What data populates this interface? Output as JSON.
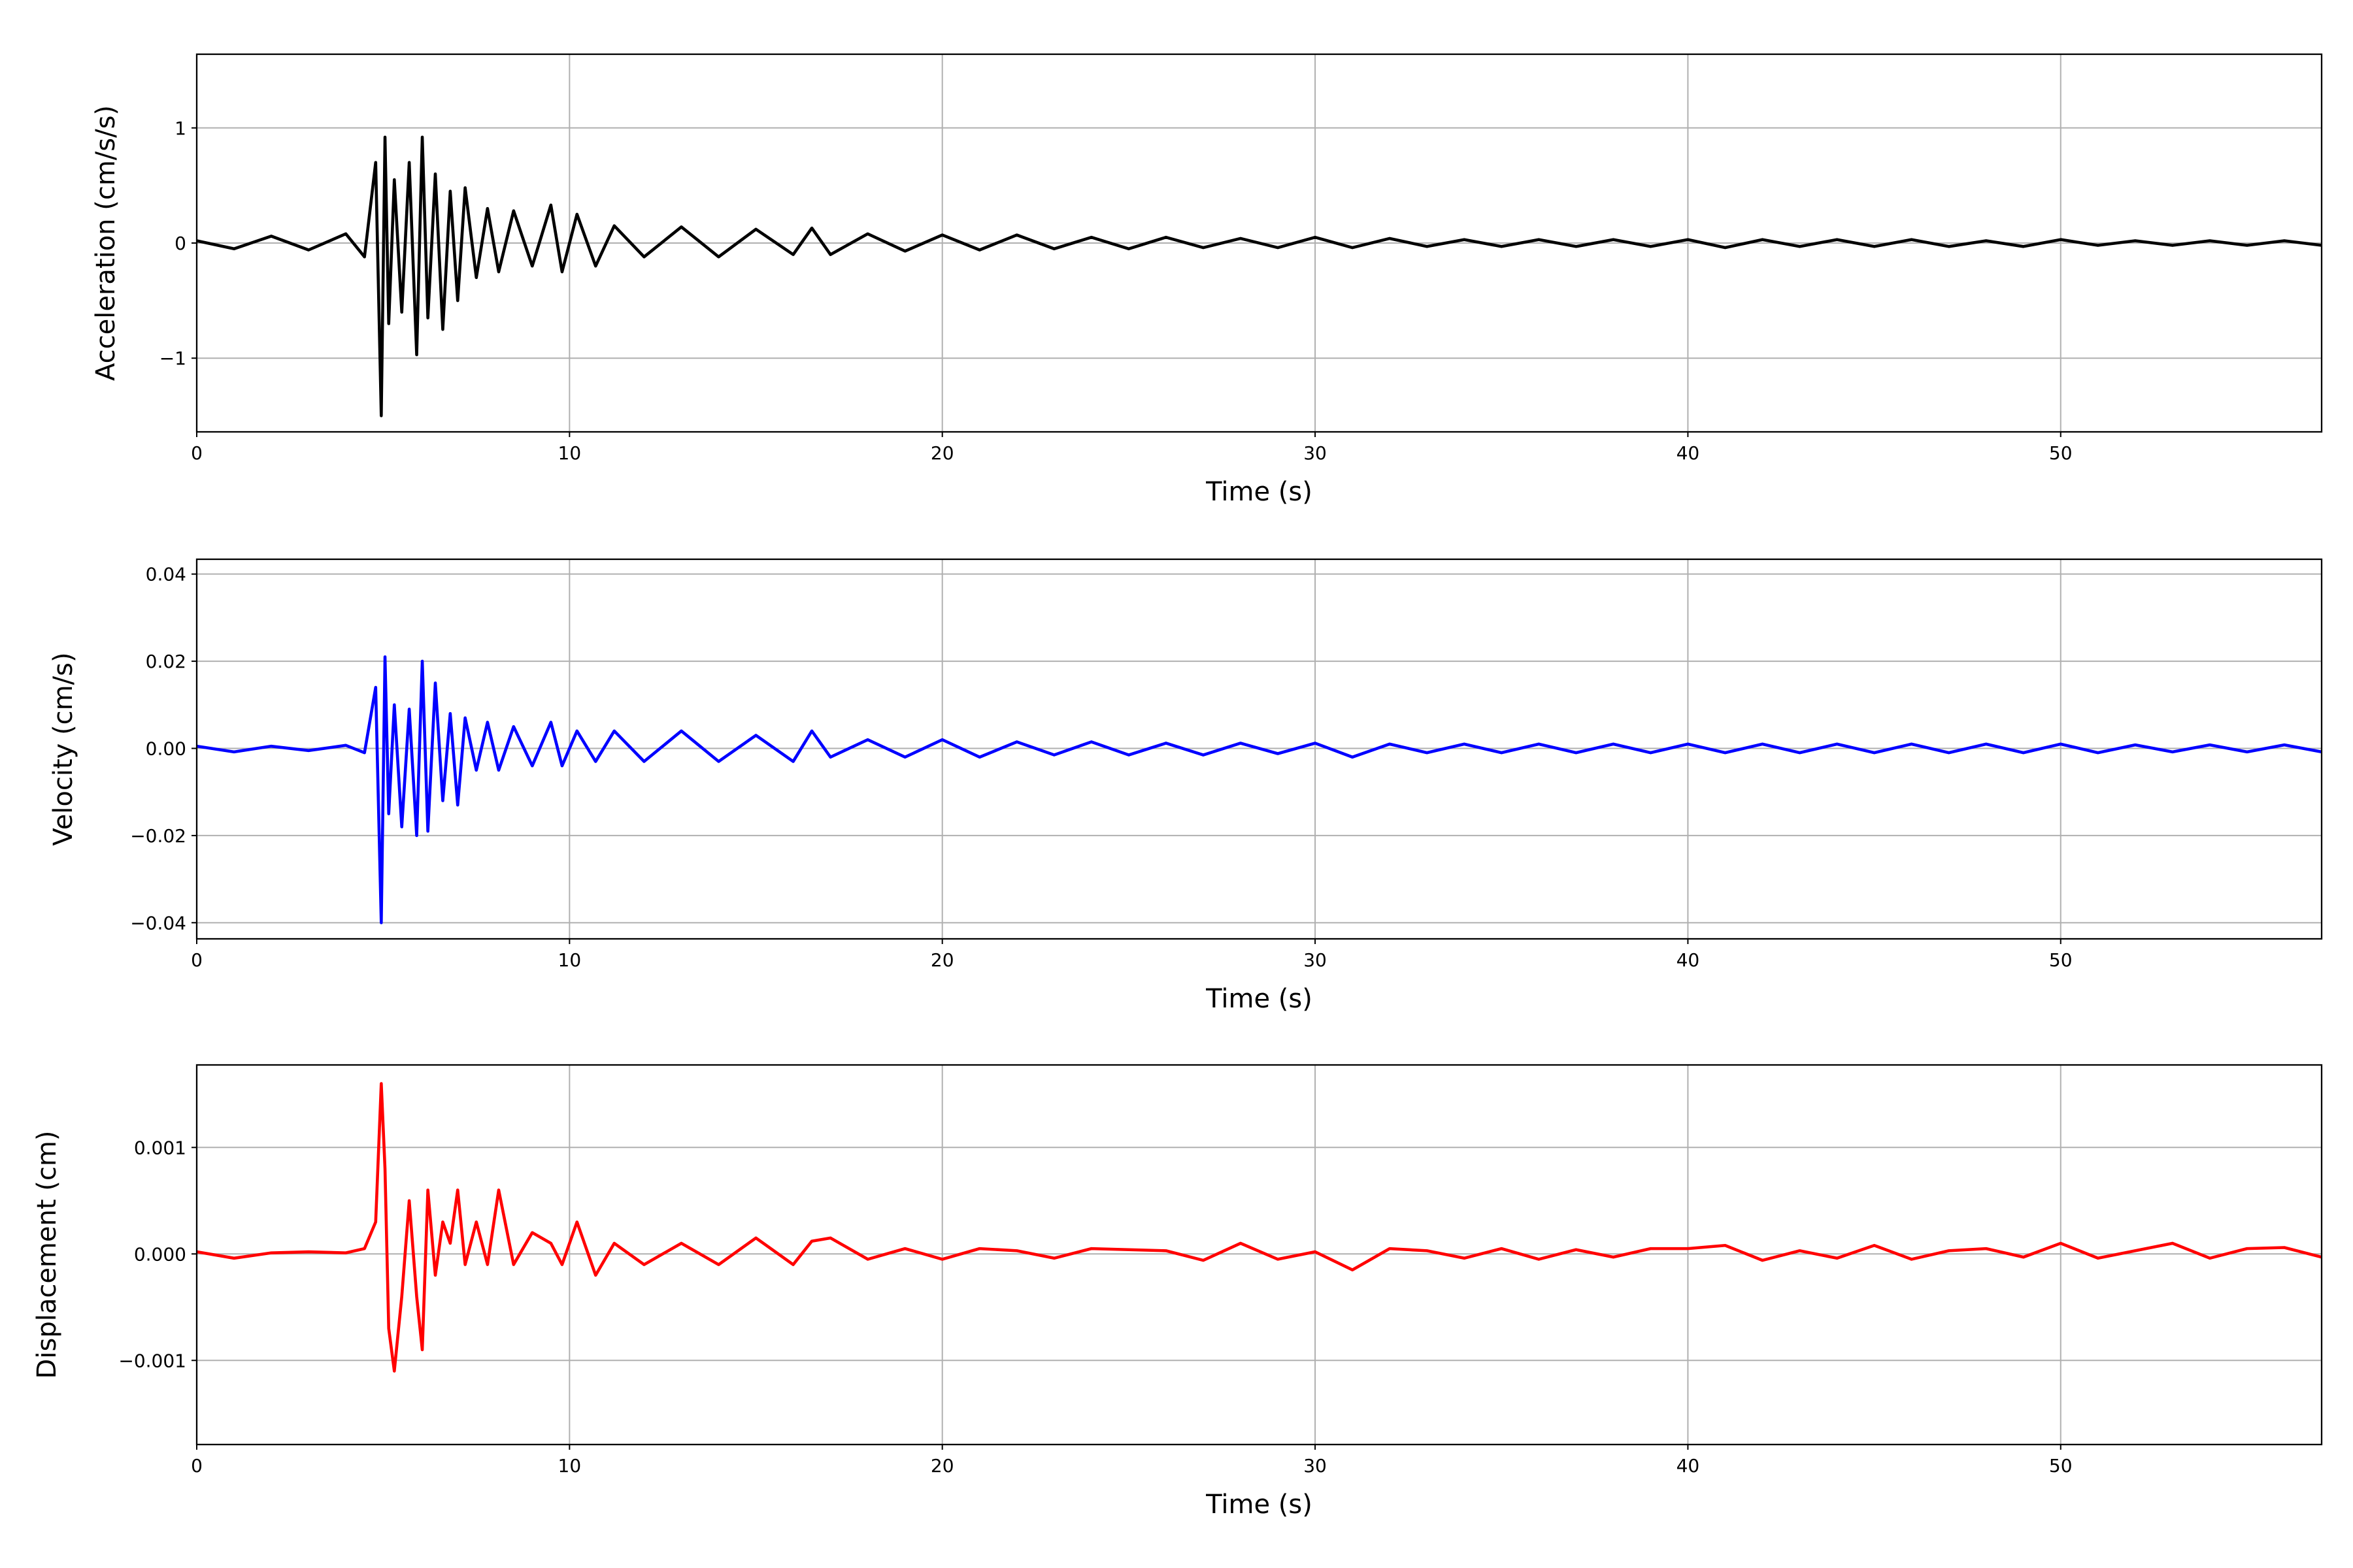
{
  "chart_data": [
    {
      "type": "line",
      "ylabel": "Acceleration (cm/s/s)",
      "xlabel": "Time (s)",
      "color": "#000000",
      "grid": true,
      "xlim": [
        0,
        57
      ],
      "xticks": [
        0,
        10,
        20,
        30,
        40,
        50
      ],
      "ylim": [
        -1.64,
        1.64
      ],
      "yticks": [
        {
          "value": -1,
          "label": "−1"
        },
        0,
        1
      ],
      "x": [
        0,
        1,
        2,
        3,
        4,
        4.5,
        4.8,
        4.95,
        5.05,
        5.15,
        5.3,
        5.5,
        5.7,
        5.9,
        6.05,
        6.2,
        6.4,
        6.6,
        6.8,
        7.0,
        7.2,
        7.5,
        7.8,
        8.1,
        8.5,
        9,
        9.5,
        9.8,
        10.2,
        10.7,
        11.2,
        12,
        13,
        14,
        15,
        16,
        16.5,
        17,
        18,
        19,
        20,
        21,
        22,
        23,
        24,
        25,
        26,
        27,
        28,
        29,
        30,
        31,
        32,
        33,
        34,
        35,
        36,
        37,
        38,
        39,
        40,
        41,
        42,
        43,
        44,
        45,
        46,
        47,
        48,
        49,
        50,
        51,
        52,
        53,
        54,
        55,
        56,
        57
      ],
      "values": [
        0.02,
        -0.05,
        0.06,
        -0.06,
        0.08,
        -0.12,
        0.7,
        -1.5,
        0.92,
        -0.7,
        0.55,
        -0.6,
        0.7,
        -0.97,
        0.92,
        -0.65,
        0.6,
        -0.75,
        0.45,
        -0.5,
        0.48,
        -0.3,
        0.3,
        -0.25,
        0.28,
        -0.2,
        0.33,
        -0.25,
        0.25,
        -0.2,
        0.15,
        -0.12,
        0.14,
        -0.12,
        0.12,
        -0.1,
        0.13,
        -0.1,
        0.08,
        -0.07,
        0.07,
        -0.06,
        0.07,
        -0.05,
        0.05,
        -0.05,
        0.05,
        -0.04,
        0.04,
        -0.04,
        0.05,
        -0.04,
        0.04,
        -0.03,
        0.03,
        -0.03,
        0.03,
        -0.03,
        0.03,
        -0.03,
        0.03,
        -0.04,
        0.03,
        -0.03,
        0.03,
        -0.03,
        0.03,
        -0.03,
        0.02,
        -0.03,
        0.03,
        -0.02,
        0.02,
        -0.02,
        0.02,
        -0.02,
        0.02,
        -0.02
      ]
    },
    {
      "type": "line",
      "ylabel": "Velocity (cm/s)",
      "xlabel": "Time (s)",
      "color": "#0000ff",
      "grid": true,
      "xlim": [
        0,
        57
      ],
      "xticks": [
        0,
        10,
        20,
        30,
        40,
        50
      ],
      "ylim": [
        -0.0437,
        0.0434
      ],
      "yticks": [
        {
          "value": -0.04,
          "label": "−0.04"
        },
        {
          "value": -0.02,
          "label": "−0.02"
        },
        {
          "value": 0,
          "label": "0.00"
        },
        {
          "value": 0.02,
          "label": "0.02"
        },
        {
          "value": 0.04,
          "label": "0.04"
        }
      ],
      "x": [
        0,
        1,
        2,
        3,
        4,
        4.5,
        4.8,
        4.95,
        5.05,
        5.15,
        5.3,
        5.5,
        5.7,
        5.9,
        6.05,
        6.2,
        6.4,
        6.6,
        6.8,
        7.0,
        7.2,
        7.5,
        7.8,
        8.1,
        8.5,
        9,
        9.5,
        9.8,
        10.2,
        10.7,
        11.2,
        12,
        13,
        14,
        15,
        16,
        16.5,
        17,
        18,
        19,
        20,
        21,
        22,
        23,
        24,
        25,
        26,
        27,
        28,
        29,
        30,
        31,
        32,
        33,
        34,
        35,
        36,
        37,
        38,
        39,
        40,
        41,
        42,
        43,
        44,
        45,
        46,
        47,
        48,
        49,
        50,
        51,
        52,
        53,
        54,
        55,
        56,
        57
      ],
      "values": [
        0.0005,
        -0.0008,
        0.0005,
        -0.0005,
        0.0007,
        -0.001,
        0.014,
        -0.04,
        0.021,
        -0.015,
        0.01,
        -0.018,
        0.009,
        -0.02,
        0.02,
        -0.019,
        0.015,
        -0.012,
        0.008,
        -0.013,
        0.007,
        -0.005,
        0.006,
        -0.005,
        0.005,
        -0.004,
        0.006,
        -0.004,
        0.004,
        -0.003,
        0.004,
        -0.003,
        0.004,
        -0.003,
        0.003,
        -0.003,
        0.004,
        -0.002,
        0.002,
        -0.002,
        0.002,
        -0.002,
        0.0015,
        -0.0015,
        0.0015,
        -0.0015,
        0.0012,
        -0.0015,
        0.0012,
        -0.0012,
        0.0012,
        -0.002,
        0.001,
        -0.001,
        0.001,
        -0.001,
        0.001,
        -0.001,
        0.001,
        -0.001,
        0.001,
        -0.001,
        0.001,
        -0.001,
        0.001,
        -0.001,
        0.001,
        -0.001,
        0.001,
        -0.001,
        0.001,
        -0.001,
        0.0008,
        -0.0008,
        0.0008,
        -0.0008,
        0.0008,
        -0.0008
      ]
    },
    {
      "type": "line",
      "ylabel": "Displacement (cm)",
      "xlabel": "Time (s)",
      "color": "#ff0000",
      "grid": true,
      "xlim": [
        0,
        57
      ],
      "xticks": [
        0,
        10,
        20,
        30,
        40,
        50
      ],
      "ylim": [
        -0.00179,
        0.001775
      ],
      "yticks": [
        {
          "value": -0.001,
          "label": "−0.001"
        },
        {
          "value": 0,
          "label": "0.000"
        },
        0.001
      ],
      "x": [
        0,
        1,
        2,
        3,
        4,
        4.5,
        4.8,
        4.95,
        5.05,
        5.15,
        5.3,
        5.5,
        5.7,
        5.9,
        6.05,
        6.2,
        6.4,
        6.6,
        6.8,
        7.0,
        7.2,
        7.5,
        7.8,
        8.1,
        8.5,
        9,
        9.5,
        9.8,
        10.2,
        10.7,
        11.2,
        12,
        13,
        14,
        15,
        16,
        16.5,
        17,
        18,
        19,
        20,
        21,
        22,
        23,
        24,
        25,
        26,
        27,
        28,
        29,
        30,
        31,
        32,
        33,
        34,
        35,
        36,
        37,
        38,
        39,
        40,
        41,
        42,
        43,
        44,
        45,
        46,
        47,
        48,
        49,
        50,
        51,
        52,
        53,
        54,
        55,
        56,
        57
      ],
      "values": [
        2e-05,
        -4e-05,
        1e-05,
        2e-05,
        1e-05,
        5e-05,
        0.0003,
        0.0016,
        0.0008,
        -0.0007,
        -0.0011,
        -0.0004,
        0.0005,
        -0.0004,
        -0.0009,
        0.0006,
        -0.0002,
        0.0003,
        0.0001,
        0.0006,
        -0.0001,
        0.0003,
        -0.0001,
        0.0006,
        -0.0001,
        0.0002,
        0.0001,
        -0.0001,
        0.0003,
        -0.0002,
        0.0001,
        -0.0001,
        0.0001,
        -0.0001,
        0.00015,
        -0.0001,
        0.00012,
        0.00015,
        -5e-05,
        5e-05,
        -5e-05,
        5e-05,
        3e-05,
        -4e-05,
        5e-05,
        4e-05,
        3e-05,
        -6e-05,
        0.0001,
        -5e-05,
        2e-05,
        -0.00015,
        5e-05,
        3e-05,
        -4e-05,
        5e-05,
        -5e-05,
        4e-05,
        -3e-05,
        5e-05,
        5e-05,
        8e-05,
        -6e-05,
        3e-05,
        -4e-05,
        8e-05,
        -5e-05,
        3e-05,
        5e-05,
        -3e-05,
        0.0001,
        -4e-05,
        3e-05,
        0.0001,
        -4e-05,
        5e-05,
        6e-05,
        -3e-05
      ]
    }
  ]
}
